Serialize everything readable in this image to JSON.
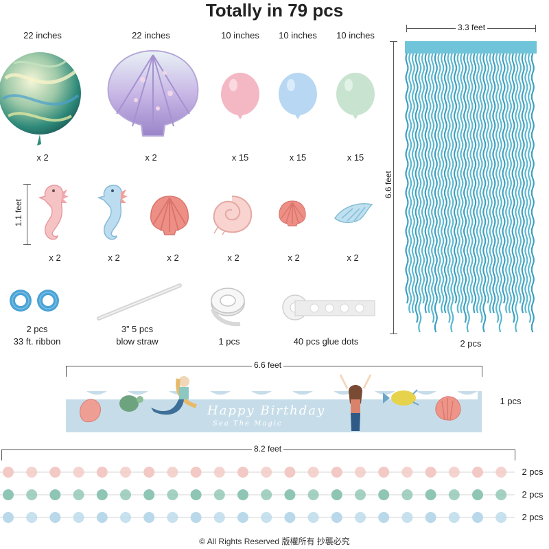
{
  "title": "Totally in 79 pcs",
  "balloons": [
    {
      "size": "22 inches",
      "qty": "x 2",
      "icon": "marble-foil-balloon-icon"
    },
    {
      "size": "22 inches",
      "qty": "x 2",
      "icon": "seashell-foil-balloon-icon"
    },
    {
      "size": "10 inches",
      "qty": "x 15",
      "icon": "pink-latex-balloon-icon",
      "color": "#f4b8c4"
    },
    {
      "size": "10 inches",
      "qty": "x 15",
      "icon": "blue-latex-balloon-icon",
      "color": "#b7d7f2"
    },
    {
      "size": "10 inches",
      "qty": "x 15",
      "icon": "green-latex-balloon-icon",
      "color": "#c8e3cf"
    }
  ],
  "cutouts": {
    "height": "1.1 feet",
    "items": [
      {
        "qty": "x 2",
        "icon": "pink-seahorse-icon"
      },
      {
        "qty": "x 2",
        "icon": "blue-seahorse-icon"
      },
      {
        "qty": "x 2",
        "icon": "coral-scallop-shell-icon"
      },
      {
        "qty": "x 2",
        "icon": "pink-nautilus-shell-icon"
      },
      {
        "qty": "x 2",
        "icon": "small-coral-shell-icon"
      },
      {
        "qty": "x 2",
        "icon": "blue-conch-shell-icon"
      }
    ]
  },
  "accessories": [
    {
      "line1": "2 pcs",
      "line2": "33 ft. ribbon",
      "icon": "ribbon-roll-icon"
    },
    {
      "line1": "3” 5 pcs",
      "line2": "blow straw",
      "icon": "blow-straw-icon"
    },
    {
      "line1": "1 pcs",
      "line2": "",
      "icon": "tape-roll-icon"
    },
    {
      "line1": "40 pcs glue dots",
      "line2": "",
      "icon": "glue-dots-strip-icon"
    }
  ],
  "curtain": {
    "width": "3.3 feet",
    "height": "6.6 feet",
    "qty": "2 pcs",
    "color": "#5bb7cf"
  },
  "banner": {
    "width": "6.6 feet",
    "qty": "1 pcs",
    "text": "Happy Birthday",
    "subtext": "Sea The Magic",
    "color": "#c6dde9"
  },
  "garland": {
    "width": "8.2 feet",
    "rows": [
      {
        "qty": "2 pcs",
        "color": "#f2c9c4"
      },
      {
        "qty": "2 pcs",
        "color": "#8fc5b4"
      },
      {
        "qty": "2 pcs",
        "color": "#b9d9ea"
      }
    ]
  },
  "copyright": "© All Rights Reserved 版權所有 抄襲必究"
}
